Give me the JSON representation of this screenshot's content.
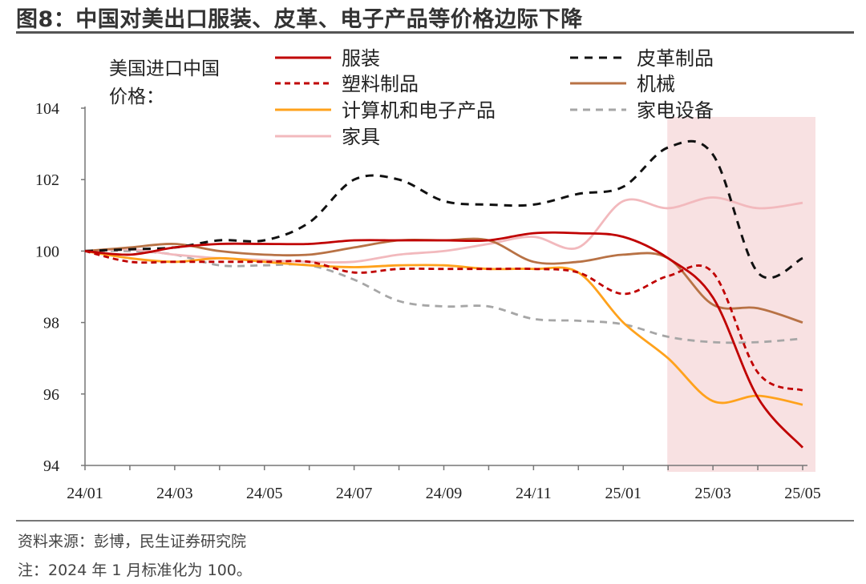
{
  "title": "图8：中国对美出口服装、皮革、电子产品等价格边际下降",
  "source": "资料来源：彭博，民生证券研究院",
  "note": "注：2024 年 1 月标准化为 100。",
  "colors": {
    "clothing": "#c00000",
    "leather": "#111111",
    "plastic": "#c00000",
    "machinery": "#b87245",
    "computer": "#ffa21c",
    "appliance": "#a6a6a6",
    "furniture": "#f2b9bd",
    "shade": "#f8e1e2"
  },
  "chart_data": {
    "type": "line",
    "ylabel": "美国进口中国价格：",
    "ylim": [
      94,
      104
    ],
    "yticks": [
      94,
      96,
      98,
      100,
      102,
      104
    ],
    "x": [
      "24/01",
      "24/02",
      "24/03",
      "24/04",
      "24/05",
      "24/06",
      "24/07",
      "24/08",
      "24/09",
      "24/10",
      "24/11",
      "24/12",
      "25/01",
      "25/02",
      "25/03",
      "25/04",
      "25/05"
    ],
    "xticks": [
      "24/01",
      "24/03",
      "24/05",
      "24/07",
      "24/09",
      "24/11",
      "25/01",
      "25/03",
      "25/05"
    ],
    "shaded_range": [
      "25/02",
      "25/05"
    ],
    "legend_position": "top",
    "series": [
      {
        "name": "服装",
        "key": "clothing",
        "style": "solid",
        "values": [
          100,
          99.9,
          100.1,
          100.2,
          100.2,
          100.2,
          100.3,
          100.3,
          100.3,
          100.3,
          100.5,
          100.5,
          100.4,
          99.8,
          98.7,
          95.9,
          94.5
        ]
      },
      {
        "name": "皮革制品",
        "key": "leather",
        "style": "dash",
        "values": [
          100,
          100.05,
          100.1,
          100.3,
          100.3,
          100.8,
          102.0,
          102.0,
          101.4,
          101.3,
          101.3,
          101.6,
          101.8,
          102.9,
          102.7,
          99.4,
          99.8
        ]
      },
      {
        "name": "塑料制品",
        "key": "plastic",
        "style": "dash",
        "values": [
          100,
          99.7,
          99.7,
          99.7,
          99.7,
          99.7,
          99.4,
          99.5,
          99.5,
          99.5,
          99.5,
          99.4,
          98.8,
          99.3,
          99.4,
          96.6,
          96.1
        ]
      },
      {
        "name": "机械",
        "key": "machinery",
        "style": "solid",
        "values": [
          100,
          100.1,
          100.2,
          100.0,
          99.9,
          99.9,
          100.1,
          100.3,
          100.3,
          100.3,
          99.7,
          99.7,
          99.9,
          99.8,
          98.5,
          98.4,
          98.0
        ]
      },
      {
        "name": "计算机和电子产品",
        "key": "computer",
        "style": "solid",
        "values": [
          100,
          99.8,
          99.7,
          99.8,
          99.7,
          99.6,
          99.55,
          99.6,
          99.6,
          99.5,
          99.5,
          99.4,
          98.0,
          97.0,
          95.8,
          95.95,
          95.7
        ]
      },
      {
        "name": "家电设备",
        "key": "appliance",
        "style": "dash",
        "values": [
          100,
          100.0,
          99.9,
          99.6,
          99.6,
          99.6,
          99.2,
          98.6,
          98.45,
          98.45,
          98.1,
          98.05,
          97.95,
          97.6,
          97.45,
          97.45,
          97.55
        ]
      },
      {
        "name": "家具",
        "key": "furniture",
        "style": "solid",
        "values": [
          100,
          100.05,
          99.9,
          99.8,
          99.75,
          99.7,
          99.7,
          99.9,
          100.0,
          100.2,
          100.4,
          100.1,
          101.4,
          101.2,
          101.5,
          101.2,
          101.35
        ]
      }
    ]
  }
}
